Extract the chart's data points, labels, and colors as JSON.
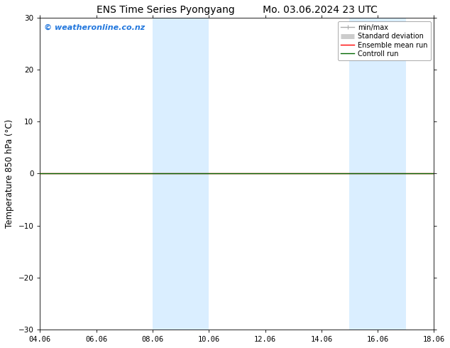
{
  "title_left": "ENS Time Series Pyongyang",
  "title_right": "Mo. 03.06.2024 23 UTC",
  "ylabel": "Temperature 850 hPa (°C)",
  "xlabel_ticks": [
    "04.06",
    "06.06",
    "08.06",
    "10.06",
    "12.06",
    "14.06",
    "16.06",
    "18.06"
  ],
  "xtick_positions": [
    0,
    2,
    4,
    6,
    8,
    10,
    12,
    14
  ],
  "xlim": [
    0,
    14
  ],
  "ylim": [
    -30,
    30
  ],
  "yticks": [
    -30,
    -20,
    -10,
    0,
    10,
    20,
    30
  ],
  "watermark": "© weatheronline.co.nz",
  "watermark_color": "#2277dd",
  "bg_color": "#ffffff",
  "plot_bg_color": "#ffffff",
  "shaded_regions": [
    {
      "x_start": 4,
      "x_end": 6,
      "color": "#daeeff"
    },
    {
      "x_start": 11,
      "x_end": 13,
      "color": "#daeeff"
    }
  ],
  "zero_line_color": "#000000",
  "zero_line_lw": 0.6,
  "ensemble_mean_color": "#ff0000",
  "ensemble_mean_lw": 1.0,
  "control_run_color": "#006600",
  "control_run_lw": 1.0,
  "legend_items": [
    {
      "label": "min/max",
      "color": "#aaaaaa",
      "lw": 1
    },
    {
      "label": "Standard deviation",
      "color": "#cccccc",
      "lw": 5
    },
    {
      "label": "Ensemble mean run",
      "color": "#ff0000",
      "lw": 1
    },
    {
      "label": "Controll run",
      "color": "#006600",
      "lw": 1
    }
  ],
  "title_fontsize": 10,
  "tick_fontsize": 7.5,
  "ylabel_fontsize": 8.5,
  "watermark_fontsize": 8,
  "legend_fontsize": 7
}
